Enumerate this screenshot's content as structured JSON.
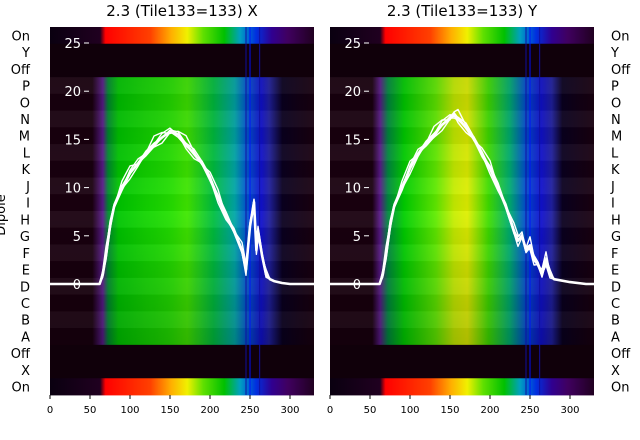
{
  "chart_data": [
    {
      "type": "heatmap",
      "title": "2.3 (Tile133=133) X",
      "ylabel": "Dipole",
      "categories": [
        "On",
        "Y",
        "Off",
        "P",
        "O",
        "N",
        "M",
        "L",
        "K",
        "J",
        "I",
        "H",
        "G",
        "F",
        "E",
        "D",
        "C",
        "B",
        "A",
        "Off",
        "X",
        "On"
      ],
      "x_ticks": [
        0,
        50,
        100,
        150,
        200,
        250,
        300
      ],
      "xlim": [
        0,
        330
      ],
      "overlay": {
        "type": "line",
        "y_ticks": [
          0,
          5,
          10,
          15,
          20,
          25
        ],
        "curve_x": [
          0,
          62,
          66,
          70,
          75,
          80,
          90,
          100,
          110,
          120,
          130,
          140,
          150,
          160,
          170,
          180,
          190,
          200,
          210,
          220,
          230,
          240,
          245,
          250,
          255,
          258,
          260,
          265,
          270,
          275,
          280,
          290,
          300,
          320,
          330
        ],
        "curve_y": [
          0,
          0,
          1,
          3,
          6,
          8,
          10,
          11.5,
          12.5,
          13.5,
          14.5,
          15.2,
          15.8,
          15.5,
          14.5,
          13.5,
          12.5,
          11.0,
          9.0,
          7.0,
          5.5,
          3.5,
          1.5,
          6.0,
          8.5,
          3.5,
          5.5,
          3.0,
          1.0,
          0.5,
          0.3,
          0.1,
          0,
          0,
          0
        ]
      }
    },
    {
      "type": "heatmap",
      "title": "2.3 (Tile133=133) Y",
      "ylabel": "",
      "categories": [
        "On",
        "Y",
        "Off",
        "P",
        "O",
        "N",
        "M",
        "L",
        "K",
        "J",
        "I",
        "H",
        "G",
        "F",
        "E",
        "D",
        "C",
        "B",
        "A",
        "Off",
        "X",
        "On"
      ],
      "x_ticks": [
        0,
        50,
        100,
        150,
        200,
        250,
        300
      ],
      "xlim": [
        0,
        330
      ],
      "overlay": {
        "type": "line",
        "y_ticks": [
          0,
          5,
          10,
          15,
          20,
          25
        ],
        "curve_x": [
          0,
          62,
          66,
          70,
          75,
          80,
          90,
          100,
          110,
          120,
          130,
          140,
          150,
          155,
          160,
          170,
          180,
          190,
          200,
          210,
          220,
          230,
          235,
          240,
          245,
          250,
          255,
          260,
          265,
          270,
          275,
          280,
          300,
          320,
          330
        ],
        "curve_y": [
          0,
          0,
          1,
          3,
          6,
          8,
          10,
          12,
          13.5,
          14.5,
          15.5,
          16.5,
          17.2,
          17.5,
          17.2,
          16.2,
          15.0,
          13.5,
          12.0,
          10.0,
          8.0,
          5.5,
          4.5,
          5.0,
          3.5,
          4.0,
          2.5,
          2.0,
          1.0,
          2.5,
          1.0,
          0.5,
          0.2,
          0,
          0
        ]
      }
    }
  ]
}
